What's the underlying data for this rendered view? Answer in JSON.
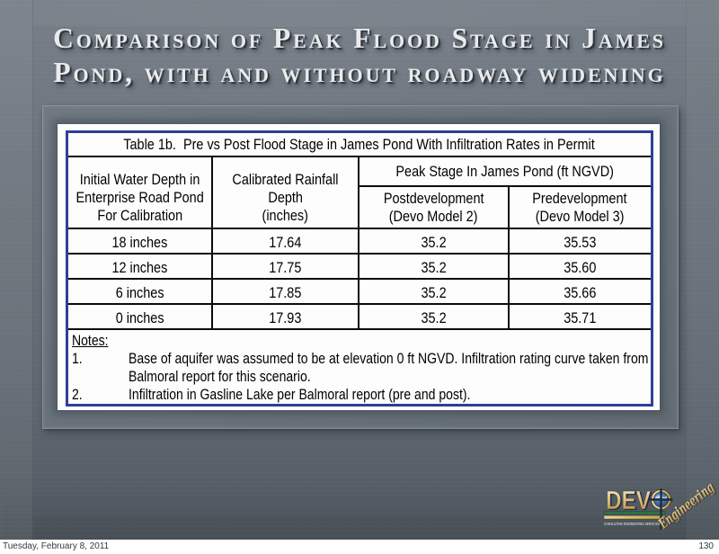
{
  "title": {
    "line1": "Comparison of Peak Flood Stage in James",
    "line2": "Pond, with and without roadway widening"
  },
  "table": {
    "caption": "Table 1b.  Pre vs Post Flood Stage in James Pond With Infiltration Rates in Permit",
    "header": {
      "col1_lines": [
        "Initial Water Depth in",
        "Enterprise Road Pond",
        "For Calibration"
      ],
      "col2_lines": [
        "Calibrated Rainfall",
        "Depth",
        "(inches)"
      ],
      "peak": "Peak Stage In James Pond (ft NGVD)",
      "sub1_lines": [
        "Postdevelopment",
        "(Devo Model 2)"
      ],
      "sub2_lines": [
        "Predevelopment",
        "(Devo Model 3)"
      ]
    },
    "rows": [
      [
        "18 inches",
        "17.64",
        "35.2",
        "35.53"
      ],
      [
        "12 inches",
        "17.75",
        "35.2",
        "35.60"
      ],
      [
        "6 inches",
        "17.85",
        "35.2",
        "35.66"
      ],
      [
        "0 inches",
        "17.93",
        "35.2",
        "35.71"
      ]
    ]
  },
  "notes": {
    "label": "Notes:",
    "items": [
      {
        "num": "1.",
        "text": "Base of aquifer was assumed to be at elevation 0 ft NGVD. Infiltration rating curve taken from Balmoral report for this scenario."
      },
      {
        "num": "2.",
        "text": "Infiltration in Gasline Lake per Balmoral report (pre and post)."
      }
    ]
  },
  "logo": {
    "name": "DEV",
    "script": "Engineering",
    "tagline": "CONSULTING ENGINEERING SERVICES"
  },
  "footer": {
    "date": "Tuesday, February 8, 2011",
    "page": "130"
  },
  "colors": {
    "table_border_blue": "#2e3e96",
    "grid_black": "#0c0c0c",
    "logo_gold": "#c9a23d",
    "logo_green": "#2f6f4a",
    "slide_bg_mid": "#6a737c",
    "title_text": "#eceeee"
  }
}
